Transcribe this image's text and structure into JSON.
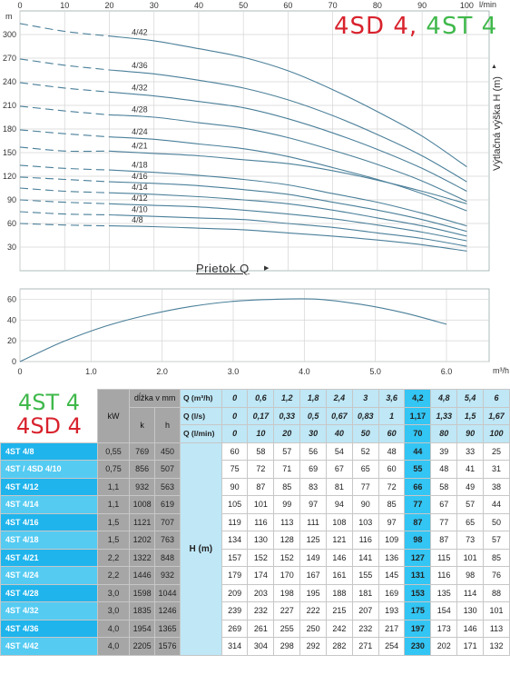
{
  "chart_data": [
    {
      "type": "line",
      "title": "",
      "xlabel": "Prietok Q",
      "ylabel": "Výtlačná výška H (m)",
      "y_unit": "m",
      "x_top_unit": "l/min",
      "x_ticks": [
        0,
        10,
        20,
        30,
        40,
        50,
        60,
        70,
        80,
        90,
        100
      ],
      "y_ticks": [
        30,
        60,
        90,
        120,
        150,
        180,
        210,
        240,
        270,
        300
      ],
      "xlim": [
        0,
        105
      ],
      "ylim": [
        0,
        330
      ],
      "grid": true,
      "x": [
        0,
        10,
        20,
        30,
        40,
        50,
        60,
        70,
        80,
        90,
        100
      ],
      "series": [
        {
          "name": "4/42",
          "values": [
            314,
            304,
            298,
            292,
            282,
            271,
            254,
            230,
            202,
            171,
            132
          ]
        },
        {
          "name": "4/36",
          "values": [
            269,
            261,
            255,
            250,
            242,
            232,
            217,
            197,
            173,
            146,
            113
          ]
        },
        {
          "name": "4/32",
          "values": [
            239,
            232,
            227,
            222,
            215,
            207,
            193,
            175,
            154,
            130,
            101
          ]
        },
        {
          "name": "4/28",
          "values": [
            209,
            203,
            198,
            195,
            188,
            181,
            169,
            153,
            135,
            114,
            88
          ]
        },
        {
          "name": "4/24",
          "values": [
            179,
            174,
            170,
            167,
            161,
            155,
            145,
            131,
            116,
            98,
            76
          ]
        },
        {
          "name": "4/21",
          "values": [
            157,
            152,
            152,
            149,
            146,
            141,
            136,
            127,
            115,
            101,
            85
          ]
        },
        {
          "name": "4/18",
          "values": [
            134,
            130,
            128,
            125,
            121,
            116,
            109,
            98,
            87,
            73,
            57
          ]
        },
        {
          "name": "4/16",
          "values": [
            119,
            116,
            113,
            111,
            108,
            103,
            97,
            87,
            77,
            65,
            50
          ]
        },
        {
          "name": "4/14",
          "values": [
            105,
            101,
            99,
            97,
            94,
            90,
            85,
            77,
            67,
            57,
            44
          ]
        },
        {
          "name": "4/12",
          "values": [
            90,
            87,
            85,
            83,
            81,
            77,
            72,
            66,
            58,
            49,
            38
          ]
        },
        {
          "name": "4/10",
          "values": [
            75,
            72,
            71,
            69,
            67,
            65,
            60,
            55,
            48,
            41,
            31
          ]
        },
        {
          "name": "4/8",
          "values": [
            60,
            58,
            57,
            56,
            54,
            52,
            48,
            44,
            39,
            33,
            25
          ]
        }
      ]
    },
    {
      "type": "line",
      "title": "",
      "x_unit": "m³/h",
      "x_ticks": [
        "0",
        "1.0",
        "2.0",
        "3.0",
        "4.0",
        "5.0",
        "6.0"
      ],
      "y_ticks": [
        0,
        20,
        40,
        60
      ],
      "xlim": [
        0,
        6.6
      ],
      "ylim": [
        0,
        70
      ],
      "grid": true,
      "x": [
        0,
        0.6,
        1.2,
        1.8,
        2.4,
        3.0,
        3.6,
        4.2,
        4.8,
        5.4,
        6.0
      ],
      "series": [
        {
          "values": [
            0,
            19,
            34,
            45,
            53,
            58,
            60,
            60,
            55,
            47,
            36
          ]
        }
      ]
    },
    {
      "type": "table",
      "header": {
        "kw": "kW",
        "dlzka": "dĺžka v mm",
        "k": "k",
        "h": "h",
        "h_label": "H  (m)",
        "q_rows": [
          {
            "label": "Q (m³/h)",
            "values": [
              "0",
              "0,6",
              "1,2",
              "1,8",
              "2,4",
              "3",
              "3,6",
              "4,2",
              "4,8",
              "5,4",
              "6"
            ]
          },
          {
            "label": "Q (l/s)",
            "values": [
              "0",
              "0,17",
              "0,33",
              "0,5",
              "0,67",
              "0,83",
              "1",
              "1,17",
              "1,33",
              "1,5",
              "1,67"
            ]
          },
          {
            "label": "Q (l/min)",
            "values": [
              "0",
              "10",
              "20",
              "30",
              "40",
              "50",
              "60",
              "70",
              "80",
              "90",
              "100"
            ]
          }
        ]
      },
      "rows": [
        {
          "model": "4ST 4/8",
          "kw": "0,55",
          "k": "769",
          "h": "450",
          "values": [
            "60",
            "58",
            "57",
            "56",
            "54",
            "52",
            "48",
            "44",
            "39",
            "33",
            "25"
          ]
        },
        {
          "model": "4ST / 4SD 4/10",
          "kw": "0,75",
          "k": "856",
          "h": "507",
          "values": [
            "75",
            "72",
            "71",
            "69",
            "67",
            "65",
            "60",
            "55",
            "48",
            "41",
            "31"
          ]
        },
        {
          "model": "4ST 4/12",
          "kw": "1,1",
          "k": "932",
          "h": "563",
          "values": [
            "90",
            "87",
            "85",
            "83",
            "81",
            "77",
            "72",
            "66",
            "58",
            "49",
            "38"
          ]
        },
        {
          "model": "4ST 4/14",
          "kw": "1,1",
          "k": "1008",
          "h": "619",
          "values": [
            "105",
            "101",
            "99",
            "97",
            "94",
            "90",
            "85",
            "77",
            "67",
            "57",
            "44"
          ]
        },
        {
          "model": "4ST 4/16",
          "kw": "1,5",
          "k": "1121",
          "h": "707",
          "values": [
            "119",
            "116",
            "113",
            "111",
            "108",
            "103",
            "97",
            "87",
            "77",
            "65",
            "50"
          ]
        },
        {
          "model": "4ST 4/18",
          "kw": "1,5",
          "k": "1202",
          "h": "763",
          "values": [
            "134",
            "130",
            "128",
            "125",
            "121",
            "116",
            "109",
            "98",
            "87",
            "73",
            "57"
          ]
        },
        {
          "model": "4ST 4/21",
          "kw": "2,2",
          "k": "1322",
          "h": "848",
          "values": [
            "157",
            "152",
            "152",
            "149",
            "146",
            "141",
            "136",
            "127",
            "115",
            "101",
            "85"
          ]
        },
        {
          "model": "4ST 4/24",
          "kw": "2,2",
          "k": "1446",
          "h": "932",
          "values": [
            "179",
            "174",
            "170",
            "167",
            "161",
            "155",
            "145",
            "131",
            "116",
            "98",
            "76"
          ]
        },
        {
          "model": "4ST 4/28",
          "kw": "3,0",
          "k": "1598",
          "h": "1044",
          "values": [
            "209",
            "203",
            "198",
            "195",
            "188",
            "181",
            "169",
            "153",
            "135",
            "114",
            "88"
          ]
        },
        {
          "model": "4ST 4/32",
          "kw": "3,0",
          "k": "1835",
          "h": "1246",
          "values": [
            "239",
            "232",
            "227",
            "222",
            "215",
            "207",
            "193",
            "175",
            "154",
            "130",
            "101"
          ]
        },
        {
          "model": "4ST 4/36",
          "kw": "4,0",
          "k": "1954",
          "h": "1365",
          "values": [
            "269",
            "261",
            "255",
            "250",
            "242",
            "232",
            "217",
            "197",
            "173",
            "146",
            "113"
          ]
        },
        {
          "model": "4ST 4/42",
          "kw": "4,0",
          "k": "2205",
          "h": "1576",
          "values": [
            "314",
            "304",
            "298",
            "292",
            "282",
            "271",
            "254",
            "230",
            "202",
            "171",
            "132"
          ]
        }
      ]
    }
  ],
  "brand": {
    "red": "4SD 4,",
    "green": "4ST 4"
  },
  "models_label": {
    "green": "4ST 4",
    "red": "4SD 4"
  },
  "colors": {
    "curve": "#4a7f99",
    "grid": "#d4d4d4",
    "cyan": "#1fb4ec",
    "light_cyan": "#bfe7f6",
    "highlight": "#33c5f3",
    "gray": "#a6a6a6",
    "red": "#d8222d",
    "green": "#3fb84b"
  }
}
